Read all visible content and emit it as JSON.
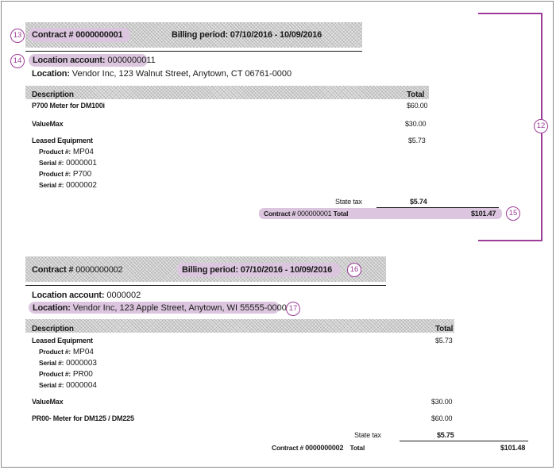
{
  "invoice1": {
    "contract_label": "Contract #",
    "contract_number": "0000000001",
    "billing_period": "Billing period: 07/10/2016 - 10/09/2016",
    "location_account_label": "Location account:",
    "location_account": "0000000011",
    "location_label": "Location:",
    "location": "Vendor Inc, 123 Walnut Street, Anytown, CT 06761-0000",
    "description_header": "Description",
    "total_header": "Total",
    "items": [
      {
        "name": "P700 Meter for DM100i",
        "amount": "$60.00"
      },
      {
        "name": "ValueMax",
        "amount": "$30.00"
      },
      {
        "name": "Leased Equipment",
        "amount": "$5.73"
      }
    ],
    "equipment_details": [
      {
        "label": "Product #:",
        "value": "MP04"
      },
      {
        "label": "Serial #:",
        "value": "0000001"
      },
      {
        "label": "Product #:",
        "value": "P700"
      },
      {
        "label": "Serial #:",
        "value": "0000002"
      }
    ],
    "state_tax_label": "State tax",
    "state_tax": "$5.74",
    "total_line_label": "Contract #",
    "total_line_number": "000000001",
    "total_line_suffix": "Total",
    "grand_total": "$101.47"
  },
  "invoice2": {
    "contract_label": "Contract #",
    "contract_number": "0000000002",
    "billing_period": "Billing period: 07/10/2016 - 10/09/2016",
    "location_account_label": "Location account:",
    "location_account": "0000002",
    "location_label": "Location:",
    "location": "Vendor Inc, 123 Apple Street, Anytown, WI 55555-0000",
    "description_header": "Description",
    "total_header": "Total",
    "leased_label": "Leased Equipment",
    "leased_amount": "$5.73",
    "equipment_details": [
      {
        "label": "Product #:",
        "value": "MP04"
      },
      {
        "label": "Serial #:",
        "value": "0000003"
      },
      {
        "label": "Product #:",
        "value": "PR00"
      },
      {
        "label": "Serial #:",
        "value": "0000004"
      }
    ],
    "items": [
      {
        "name": "ValueMax",
        "amount": "$30.00"
      },
      {
        "name": "PR00- Meter for DM125 / DM225",
        "amount": "$60.00"
      }
    ],
    "state_tax_label": "State tax",
    "state_tax": "$5.75",
    "total_line_label": "Contract #",
    "total_line_number": "0000000002",
    "total_line_suffix": "Total",
    "grand_total": "$101.48"
  },
  "callouts": {
    "c12": "12",
    "c13": "13",
    "c14": "14",
    "c15": "15",
    "c16": "16",
    "c17": "17"
  },
  "colors": {
    "accent": "#9d3c98",
    "highlight": "#dcc6df",
    "hatch": "#e2e2e2"
  }
}
